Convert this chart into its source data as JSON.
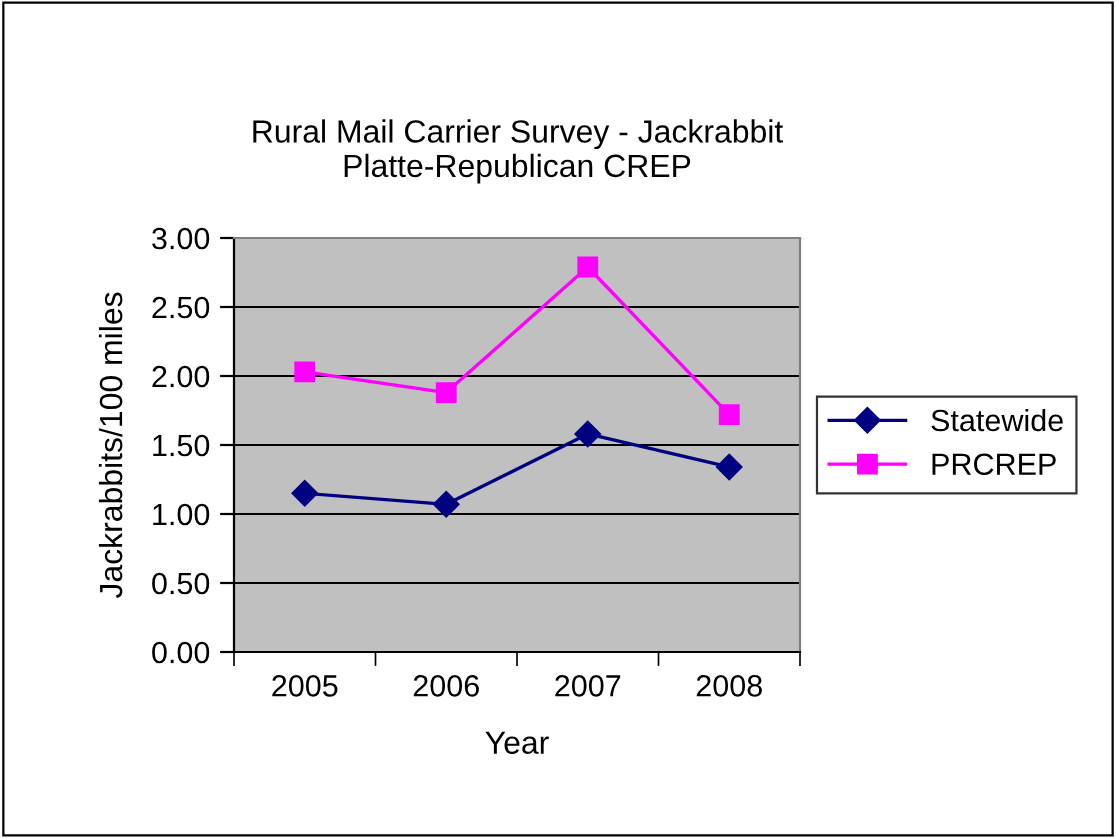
{
  "chart_data": {
    "type": "line",
    "title": "Rural Mail Carrier Survey - Jackrabbit\nPlatte-Republican CREP",
    "xlabel": "Year",
    "ylabel": "Jackrabbits/100 miles",
    "categories": [
      "2005",
      "2006",
      "2007",
      "2008"
    ],
    "series": [
      {
        "name": "Statewide",
        "color": "#000080",
        "marker": "diamond",
        "values": [
          1.15,
          1.07,
          1.58,
          1.34
        ]
      },
      {
        "name": "PRCREP",
        "color": "#ff00ff",
        "marker": "square",
        "values": [
          2.03,
          1.88,
          2.79,
          1.72
        ]
      }
    ],
    "ylim": [
      0,
      3
    ],
    "yticks": [
      {
        "value": 0,
        "label": "0.00"
      },
      {
        "value": 0.5,
        "label": "0.50"
      },
      {
        "value": 1,
        "label": "1.00"
      },
      {
        "value": 1.5,
        "label": "1.50"
      },
      {
        "value": 2,
        "label": "2.00"
      },
      {
        "value": 2.5,
        "label": "2.50"
      },
      {
        "value": 3,
        "label": "3.00"
      }
    ],
    "grid": "y",
    "legend": "right"
  }
}
